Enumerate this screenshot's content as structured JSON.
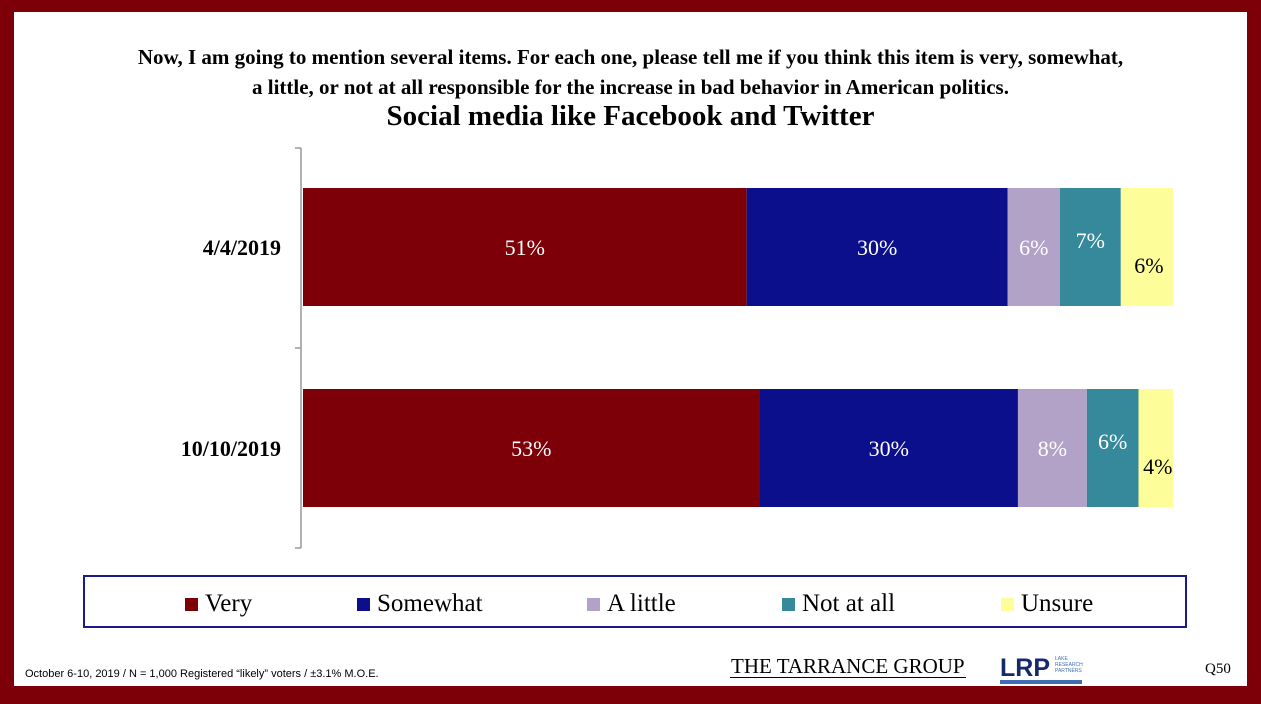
{
  "question": {
    "line1": "Now, I am going to mention several items.  For each one, please tell me if you think this item is very, somewhat,",
    "line2": "a little, or not at all responsible for the increase in bad behavior in American politics."
  },
  "chart_data": {
    "type": "bar",
    "orientation": "horizontal",
    "stacked": true,
    "title": "Social media like Facebook and Twitter",
    "categories": [
      "4/4/2019",
      "10/10/2019"
    ],
    "series": [
      {
        "name": "Very",
        "values": [
          51,
          53
        ],
        "labels": [
          "51%",
          "53%"
        ],
        "color": "#7d0009",
        "label_color": "#ffffff"
      },
      {
        "name": "Somewhat",
        "values": [
          30,
          30
        ],
        "labels": [
          "30%",
          "30%"
        ],
        "color": "#0c0f8c",
        "label_color": "#ffffff"
      },
      {
        "name": "A little",
        "values": [
          6,
          8
        ],
        "labels": [
          "6%",
          "8%"
        ],
        "color": "#b3a2c8",
        "label_color": "#ffffff"
      },
      {
        "name": "Not at all",
        "values": [
          7,
          6
        ],
        "labels": [
          "7%",
          "6%"
        ],
        "color": "#35899a",
        "label_color": "#ffffff"
      },
      {
        "name": "Unsure",
        "values": [
          6,
          4
        ],
        "labels": [
          "6%",
          "4%"
        ],
        "color": "#fdfd9a",
        "label_color": "#000000"
      }
    ],
    "xlim": [
      0,
      100
    ],
    "grid": false,
    "legend_position": "bottom"
  },
  "footer": {
    "note": "October 6-10, 2019 / N = 1,000 Registered “likely” voters / ±3.1% M.O.E.",
    "tarrance": "THE TARRANCE GROUP",
    "lrp": "LRP",
    "lrp_tagline": "LAKE\nRESEARCH\nPARTNERS",
    "question_number": "Q50"
  }
}
